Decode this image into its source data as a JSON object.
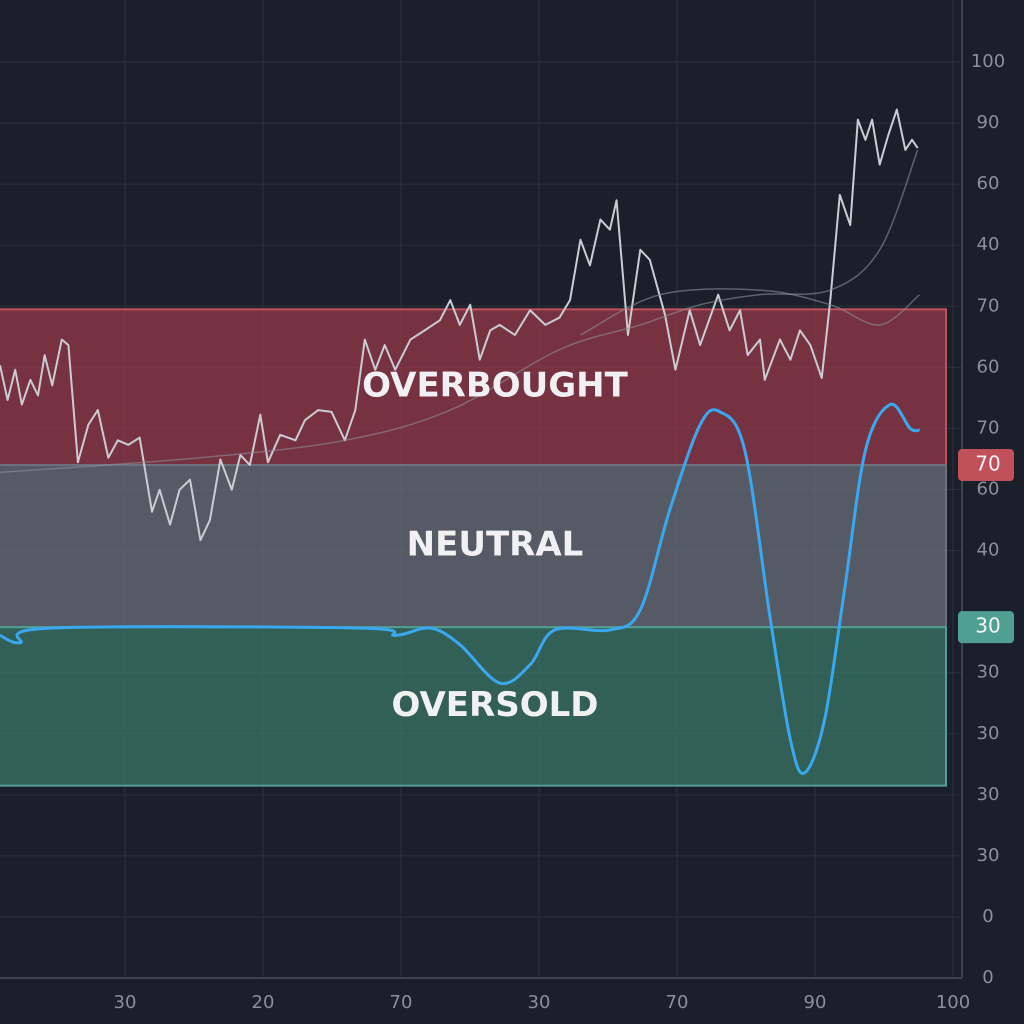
{
  "chart_data": {
    "type": "line",
    "xlim": [
      0,
      100
    ],
    "ylim": [
      0,
      100
    ],
    "bottom_axis_labels": [
      "30",
      "20",
      "70",
      "30",
      "70",
      "90",
      "100"
    ],
    "right_axis_labels": [
      "100",
      "90",
      "60",
      "40",
      "70",
      "60",
      "70",
      "60",
      "40",
      null,
      "30",
      "30",
      "30",
      "30",
      "0",
      "0"
    ],
    "bands": [
      {
        "label": "OVERBOUGHT",
        "from": 56.0,
        "to": 73.0,
        "color": "#9a3a4a",
        "edge": "#c0505a",
        "badge": "70"
      },
      {
        "label": "NEUTRAL",
        "from": 38.3,
        "to": 56.0,
        "color": "#6e717d",
        "edge": "#6e717d"
      },
      {
        "label": "OVERSOLD",
        "from": 21.0,
        "to": 38.3,
        "color": "#3c7a6a",
        "edge": "#4fa090",
        "badge": "30"
      }
    ],
    "series": [
      {
        "color": "#c9ccd3",
        "smooth": false,
        "width": 2,
        "x": [
          0,
          0.8,
          1.6,
          2.3,
          3.2,
          4.0,
          4.7,
          5.5,
          6.5,
          7.2,
          8.2,
          9.3,
          10.3,
          11.4,
          12.4,
          13.5,
          14.7,
          16.0,
          16.8,
          17.9,
          18.9,
          20.0,
          21.1,
          22.1,
          23.2,
          24.4,
          25.3,
          26.3,
          27.4,
          28.2,
          29.5,
          31.1,
          32.1,
          33.5,
          34.9,
          36.3,
          37.4,
          38.4,
          39.5,
          40.5,
          41.6,
          43.2,
          44.7,
          46.3,
          47.4,
          48.4,
          49.5,
          50.5,
          51.6,
          52.6,
          54.2,
          55.8,
          57.4,
          58.9,
          60.0,
          61.1,
          62.1,
          63.2,
          64.2,
          64.9,
          66.1,
          67.4,
          68.4,
          70.0,
          71.1,
          72.6,
          73.7,
          75.6,
          76.8,
          77.9,
          78.7,
          80.0,
          80.5,
          82.1,
          83.2,
          84.2,
          85.3,
          86.5,
          87.4,
          88.4,
          89.5,
          90.3,
          91.1,
          91.8,
          92.6,
          93.5,
          94.4,
          95.3,
          96.0,
          96.6
        ],
        "values": [
          66.9,
          63.1,
          66.4,
          62.6,
          65.3,
          63.6,
          68.0,
          64.7,
          69.7,
          69.1,
          56.3,
          60.4,
          62.0,
          56.8,
          58.7,
          58.2,
          59.0,
          50.9,
          53.3,
          49.5,
          53.3,
          54.4,
          47.8,
          50.0,
          56.6,
          53.3,
          57.1,
          56.0,
          61.5,
          56.3,
          59.3,
          58.7,
          60.9,
          62.0,
          61.8,
          58.7,
          62.0,
          69.7,
          66.4,
          69.1,
          66.4,
          69.7,
          70.7,
          71.8,
          74.0,
          71.3,
          73.5,
          67.5,
          70.7,
          71.3,
          70.2,
          72.9,
          71.3,
          72.1,
          74.0,
          80.6,
          77.8,
          82.8,
          81.7,
          84.9,
          70.2,
          79.5,
          78.4,
          72.4,
          66.4,
          72.9,
          69.1,
          74.6,
          70.7,
          72.9,
          68.0,
          69.7,
          65.3,
          69.7,
          67.5,
          70.7,
          69.1,
          65.5,
          74.0,
          85.5,
          82.2,
          93.7,
          91.5,
          93.7,
          88.8,
          92.0,
          94.8,
          90.4,
          91.5,
          90.6
        ]
      },
      {
        "color": "#8a8d96",
        "smooth": true,
        "width": 1.5,
        "x": [
          0,
          21.1,
          36.3,
          47.4,
          58.9,
          67.4,
          73.7,
          80.0,
          87.4,
          92.6,
          96.6
        ],
        "values": [
          55.2,
          56.8,
          58.7,
          62.0,
          68.6,
          71.3,
          73.5,
          74.6,
          75.1,
          79.5,
          90.4
        ]
      },
      {
        "color": "#8a8d96",
        "smooth": true,
        "width": 1.5,
        "x": [
          61.1,
          69.5,
          80.0,
          87.4,
          92.6,
          96.8
        ],
        "values": [
          70.2,
          74.6,
          75.1,
          73.5,
          71.3,
          74.6
        ]
      },
      {
        "color": "#3aa8f0",
        "smooth": true,
        "width": 3,
        "x": [
          0,
          2.1,
          5.3,
          37.9,
          41.6,
          45.3,
          48.4,
          52.6,
          55.8,
          58.4,
          64.2,
          67.4,
          70.5,
          73.7,
          75.8,
          78.4,
          81.1,
          83.2,
          84.7,
          86.8,
          88.9,
          91.1,
          93.7,
          95.8,
          96.8
        ],
        "values": [
          37.4,
          36.6,
          38.2,
          38.2,
          37.4,
          38.2,
          36.4,
          32.2,
          34.2,
          38.0,
          38.0,
          40.2,
          51.1,
          60.4,
          61.8,
          57.6,
          39.1,
          26.0,
          22.4,
          28.2,
          42.4,
          57.6,
          62.6,
          60.0,
          59.8
        ]
      }
    ]
  }
}
